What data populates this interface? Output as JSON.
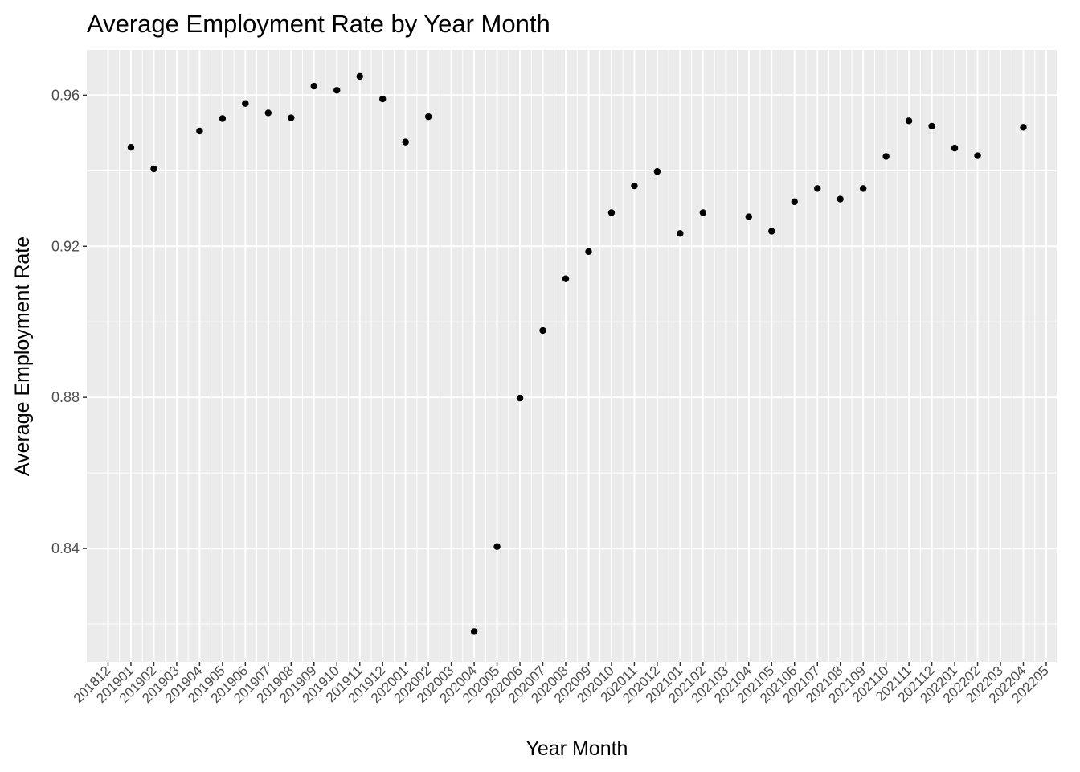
{
  "chart_data": {
    "type": "scatter",
    "title": "Average Employment Rate by Year Month",
    "xlabel": "Year Month",
    "ylabel": "Average Employment Rate",
    "categories": [
      "201812",
      "201901",
      "201902",
      "201903",
      "201904",
      "201905",
      "201906",
      "201907",
      "201908",
      "201909",
      "201910",
      "201911",
      "201912",
      "202001",
      "202002",
      "202003",
      "202004",
      "202005",
      "202006",
      "202007",
      "202008",
      "202009",
      "202010",
      "202011",
      "202012",
      "202101",
      "202102",
      "202103",
      "202104",
      "202105",
      "202106",
      "202107",
      "202108",
      "202109",
      "202110",
      "202111",
      "202112",
      "202201",
      "202202",
      "202203",
      "202204",
      "202205"
    ],
    "values": [
      null,
      0.9462,
      0.9405,
      null,
      0.9505,
      0.9538,
      0.9578,
      0.9553,
      0.954,
      0.9624,
      0.9613,
      0.965,
      0.959,
      0.9476,
      0.9543,
      null,
      0.818,
      0.8405,
      0.8798,
      0.8977,
      0.9114,
      0.9186,
      0.9289,
      0.936,
      0.9398,
      0.9234,
      0.9289,
      null,
      0.9278,
      0.924,
      0.9318,
      0.9353,
      0.9325,
      0.9353,
      0.9438,
      0.9532,
      0.9518,
      0.946,
      0.944,
      null,
      0.9515,
      null
    ],
    "y_ticks": [
      "0.84",
      "0.88",
      "0.92",
      "0.96"
    ],
    "ylim": [
      0.81,
      0.972
    ],
    "grid": true,
    "point_color": "#000000",
    "panel_background": "#ebebeb",
    "grid_color": "#ffffff"
  }
}
